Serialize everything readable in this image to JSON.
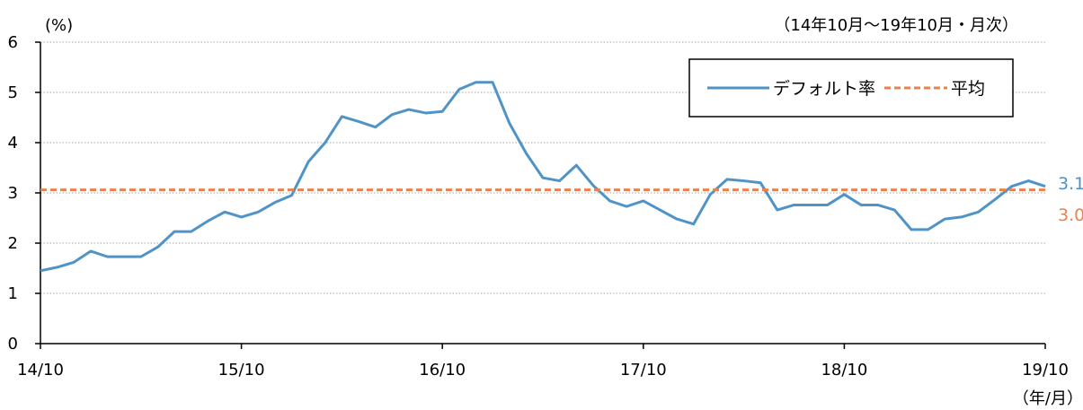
{
  "chart_data": {
    "type": "line",
    "unit_label": "(%)",
    "period_note": "（14年10月～19年10月・月次）",
    "x_unit_label": "（年/月）",
    "x_tick_labels": [
      "14/10",
      "15/10",
      "16/10",
      "17/10",
      "18/10",
      "19/10"
    ],
    "y_tick_labels": [
      "0",
      "1",
      "2",
      "3",
      "4",
      "5",
      "6"
    ],
    "ylim": [
      0,
      6
    ],
    "grid": true,
    "legend_position": "top-right",
    "series": [
      {
        "name": "デフォルト率",
        "color": "#4f93c7",
        "style": "solid",
        "end_label": "3.1",
        "values": [
          1.45,
          1.52,
          1.62,
          1.84,
          1.73,
          1.73,
          1.73,
          1.92,
          2.23,
          2.23,
          2.44,
          2.62,
          2.52,
          2.62,
          2.81,
          2.95,
          3.62,
          4.0,
          4.52,
          4.42,
          4.31,
          4.56,
          4.66,
          4.59,
          4.62,
          5.06,
          5.2,
          5.2,
          4.39,
          3.79,
          3.3,
          3.24,
          3.55,
          3.15,
          2.84,
          2.73,
          2.84,
          2.66,
          2.48,
          2.38,
          2.97,
          3.27,
          3.24,
          3.2,
          2.66,
          2.76,
          2.76,
          2.76,
          2.97,
          2.76,
          2.76,
          2.66,
          2.27,
          2.27,
          2.48,
          2.52,
          2.62,
          2.87,
          3.13,
          3.24,
          3.13
        ]
      },
      {
        "name": "平均",
        "color": "#e8834f",
        "style": "dashed",
        "end_label": "3.0",
        "values": [
          3.06,
          3.06
        ]
      }
    ]
  }
}
